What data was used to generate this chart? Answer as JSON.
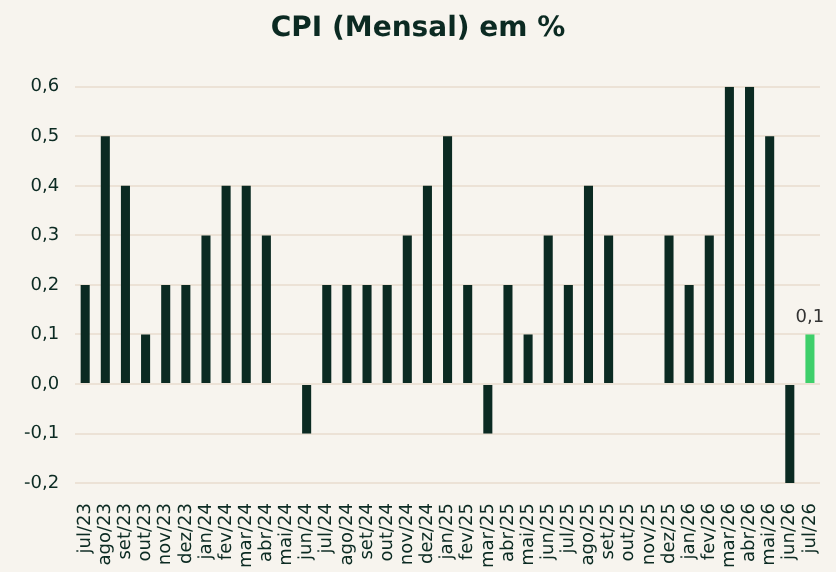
{
  "chart_data": {
    "type": "bar",
    "title": "CPI (Mensal) em %",
    "categories": [
      "jul/23",
      "ago/23",
      "set/23",
      "out/23",
      "nov/23",
      "dez/23",
      "jan/24",
      "fev/24",
      "mar/24",
      "abr/24",
      "mai/24",
      "jun/24",
      "jul/24",
      "ago/24",
      "set/24",
      "out/24",
      "nov/24",
      "dez/24",
      "jan/25",
      "fev/25",
      "mar/25",
      "abr/25",
      "mai/25",
      "jun/25",
      "jul/25",
      "ago/25",
      "set/25",
      "out/25",
      "nov/25",
      "dez/25",
      "jan/26",
      "fev/26",
      "mar/26",
      "abr/26",
      "mai/26",
      "jun/26",
      "jul/26"
    ],
    "values": [
      0.2,
      0.5,
      0.4,
      0.1,
      0.2,
      0.2,
      0.3,
      0.4,
      0.4,
      0.3,
      0,
      -0.1,
      0.2,
      0.2,
      0.2,
      0.2,
      0.3,
      0.4,
      0.5,
      0.2,
      -0.1,
      0.2,
      0.1,
      0.3,
      0.2,
      0.4,
      0.3,
      0,
      0,
      0.3,
      0.2,
      0.3,
      0.6,
      0.6,
      0.5,
      -0.2,
      0.1
    ],
    "colors": [
      "#0b2a22",
      "#0b2a22",
      "#0b2a22",
      "#0b2a22",
      "#0b2a22",
      "#0b2a22",
      "#0b2a22",
      "#0b2a22",
      "#0b2a22",
      "#0b2a22",
      "#0b2a22",
      "#0b2a22",
      "#0b2a22",
      "#0b2a22",
      "#0b2a22",
      "#0b2a22",
      "#0b2a22",
      "#0b2a22",
      "#0b2a22",
      "#0b2a22",
      "#0b2a22",
      "#0b2a22",
      "#0b2a22",
      "#0b2a22",
      "#0b2a22",
      "#0b2a22",
      "#0b2a22",
      "#0b2a22",
      "#0b2a22",
      "#0b2a22",
      "#0b2a22",
      "#0b2a22",
      "#0b2a22",
      "#0b2a22",
      "#0b2a22",
      "#0b2a22",
      "#3ecf6a"
    ],
    "value_labels": [
      null,
      null,
      null,
      null,
      null,
      null,
      null,
      null,
      null,
      null,
      null,
      null,
      null,
      null,
      null,
      null,
      null,
      null,
      null,
      null,
      null,
      null,
      null,
      null,
      null,
      null,
      null,
      null,
      null,
      null,
      null,
      null,
      null,
      null,
      null,
      null,
      "0,1"
    ],
    "ylim": [
      -0.2,
      0.6
    ],
    "yticks": [
      {
        "value": -0.2,
        "label": "-0,2"
      },
      {
        "value": -0.1,
        "label": "-0,1"
      },
      {
        "value": 0,
        "label": "0,0"
      },
      {
        "value": 0.1,
        "label": "0,1"
      },
      {
        "value": 0.2,
        "label": "0,2"
      },
      {
        "value": 0.3,
        "label": "0,3"
      },
      {
        "value": 0.4,
        "label": "0,4"
      },
      {
        "value": 0.5,
        "label": "0,5"
      },
      {
        "value": 0.6,
        "label": "0,6"
      }
    ],
    "grid": "y",
    "legend": false
  }
}
